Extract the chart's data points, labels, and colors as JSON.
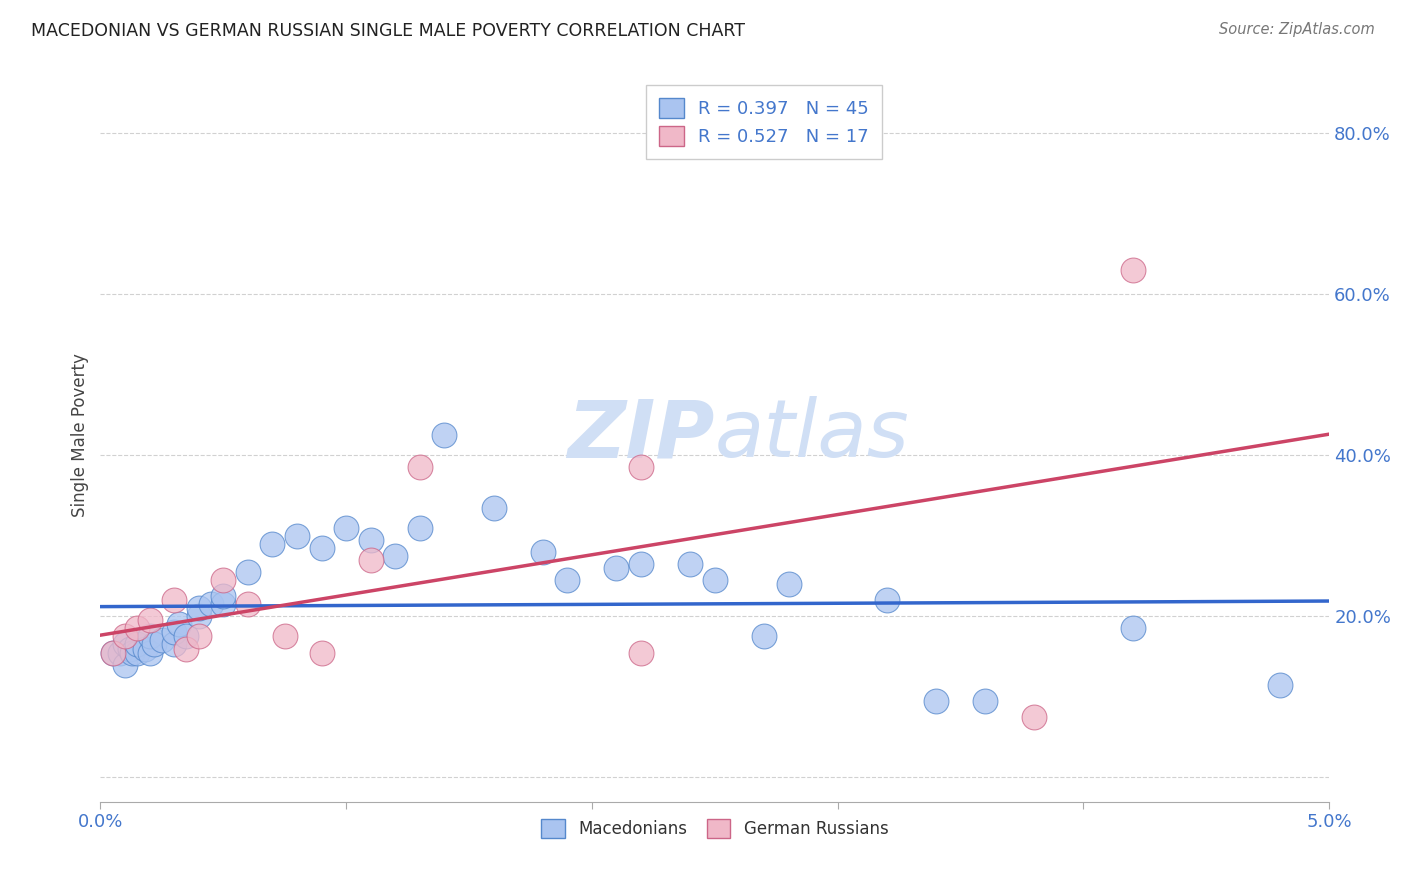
{
  "title": "MACEDONIAN VS GERMAN RUSSIAN SINGLE MALE POVERTY CORRELATION CHART",
  "source": "Source: ZipAtlas.com",
  "ylabel": "Single Male Poverty",
  "xlim": [
    0.0,
    0.05
  ],
  "ylim": [
    -0.03,
    0.88
  ],
  "mac_color": "#aac4f0",
  "mac_edge_color": "#5588cc",
  "gr_color": "#f0b8c8",
  "gr_edge_color": "#cc6688",
  "mac_line_color": "#3366cc",
  "gr_line_color": "#cc4466",
  "watermark_color": "#d0dff5",
  "tick_color": "#4477cc",
  "title_color": "#222222",
  "source_color": "#777777",
  "macedonians_x": [
    0.0005,
    0.0008,
    0.001,
    0.001,
    0.0012,
    0.0013,
    0.0015,
    0.0015,
    0.0018,
    0.002,
    0.002,
    0.0022,
    0.0025,
    0.003,
    0.003,
    0.0032,
    0.0035,
    0.004,
    0.004,
    0.0045,
    0.005,
    0.005,
    0.006,
    0.007,
    0.008,
    0.009,
    0.01,
    0.011,
    0.012,
    0.013,
    0.014,
    0.016,
    0.018,
    0.019,
    0.021,
    0.022,
    0.024,
    0.025,
    0.027,
    0.028,
    0.032,
    0.034,
    0.036,
    0.042,
    0.048
  ],
  "macedonians_y": [
    0.155,
    0.155,
    0.14,
    0.165,
    0.16,
    0.155,
    0.155,
    0.165,
    0.16,
    0.155,
    0.175,
    0.165,
    0.17,
    0.165,
    0.18,
    0.19,
    0.175,
    0.2,
    0.21,
    0.215,
    0.215,
    0.225,
    0.255,
    0.29,
    0.3,
    0.285,
    0.31,
    0.295,
    0.275,
    0.31,
    0.425,
    0.335,
    0.28,
    0.245,
    0.26,
    0.265,
    0.265,
    0.245,
    0.175,
    0.24,
    0.22,
    0.095,
    0.095,
    0.185,
    0.115
  ],
  "german_russian_x": [
    0.0005,
    0.001,
    0.0015,
    0.002,
    0.003,
    0.0035,
    0.004,
    0.005,
    0.006,
    0.0075,
    0.009,
    0.011,
    0.013,
    0.022,
    0.022,
    0.038,
    0.042
  ],
  "german_russian_y": [
    0.155,
    0.175,
    0.185,
    0.195,
    0.22,
    0.16,
    0.175,
    0.245,
    0.215,
    0.175,
    0.155,
    0.27,
    0.385,
    0.155,
    0.385,
    0.075,
    0.63
  ]
}
